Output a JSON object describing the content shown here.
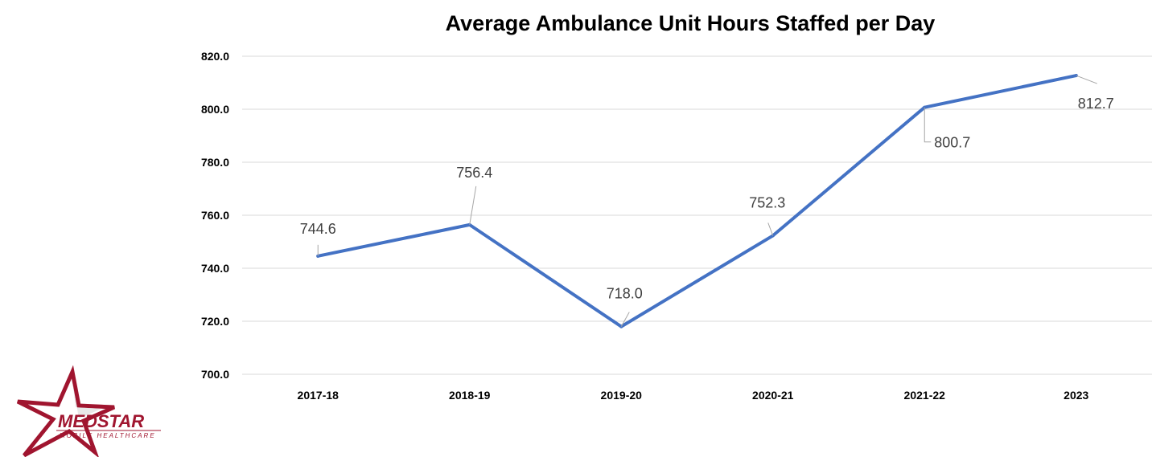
{
  "logo": {
    "name": "MEDSTAR",
    "subtitle": "MOBILE HEALTHCARE"
  },
  "chart_data": {
    "type": "line",
    "title": "Average Ambulance Unit Hours Staffed per Day",
    "xlabel": "",
    "ylabel": "",
    "categories": [
      "2017-18",
      "2018-19",
      "2019-20",
      "2020-21",
      "2021-22",
      "2023"
    ],
    "values": [
      744.6,
      756.4,
      718.0,
      752.3,
      800.7,
      812.7
    ],
    "data_labels": [
      "744.6",
      "756.4",
      "718.0",
      "752.3",
      "800.7",
      "812.7"
    ],
    "ylim": [
      700,
      820
    ],
    "yticks": [
      "700.0",
      "720.0",
      "740.0",
      "760.0",
      "780.0",
      "800.0",
      "820.0"
    ],
    "grid": true,
    "legend": "none",
    "line_color": "#4472c4"
  }
}
